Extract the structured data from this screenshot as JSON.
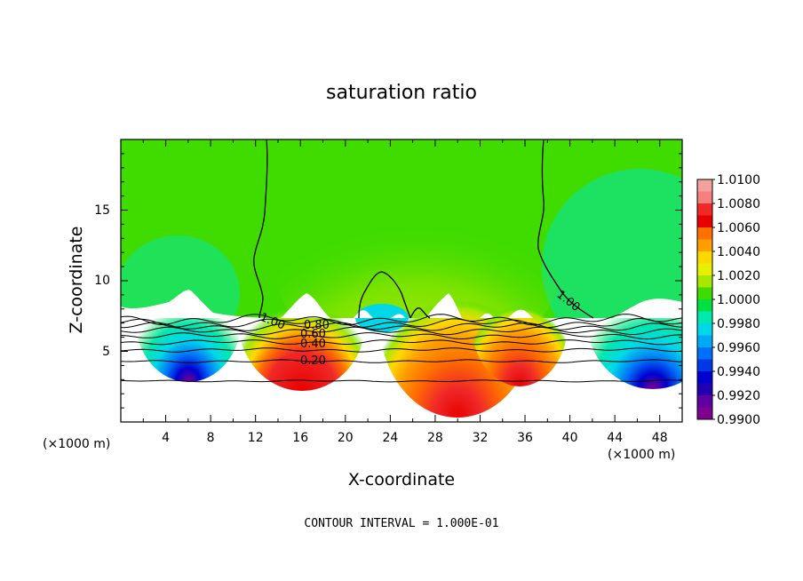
{
  "chart_data": {
    "type": "heatmap",
    "title": "saturation ratio",
    "xlabel": "X-coordinate",
    "ylabel": "Z-coordinate",
    "x_unit": "(×1000 m)",
    "y_unit": "(×1000 m)",
    "note": "CONTOUR INTERVAL = 1.000E-01",
    "xlim": [
      0,
      50
    ],
    "ylim": [
      0,
      20
    ],
    "x_ticks": [
      "4",
      "8",
      "12",
      "16",
      "20",
      "24",
      "28",
      "32",
      "36",
      "40",
      "44",
      "48"
    ],
    "y_ticks": [
      "5",
      "10",
      "15"
    ],
    "colorbar": {
      "range": [
        0.99,
        1.01
      ],
      "levels": [
        "1.0100",
        "1.0080",
        "1.0060",
        "1.0040",
        "1.0020",
        "1.0000",
        "0.9980",
        "0.9960",
        "0.9940",
        "0.9920",
        "0.9900"
      ],
      "colors": [
        "#f4a0a0",
        "#f48080",
        "#f02828",
        "#e80000",
        "#ff7000",
        "#ffa000",
        "#ffd800",
        "#e6f000",
        "#a8e800",
        "#40dc00",
        "#00e040",
        "#00e8b0",
        "#00d8e8",
        "#00a8f8",
        "#0070f8",
        "#0038e8",
        "#0000d0",
        "#2000b0",
        "#6000a0",
        "#800090"
      ]
    },
    "contour_labels": [
      "1.00",
      "1.00",
      "0.80",
      "0.60",
      "0.40",
      "0.20"
    ],
    "contour_lines": [
      {
        "z": 2.9
      },
      {
        "z": 4.3
      },
      {
        "z": 5.1
      },
      {
        "z": 5.65
      },
      {
        "z": 6.1
      },
      {
        "z": 6.45
      },
      {
        "z": 6.75
      },
      {
        "z": 7.0
      },
      {
        "z": 7.25
      }
    ]
  }
}
